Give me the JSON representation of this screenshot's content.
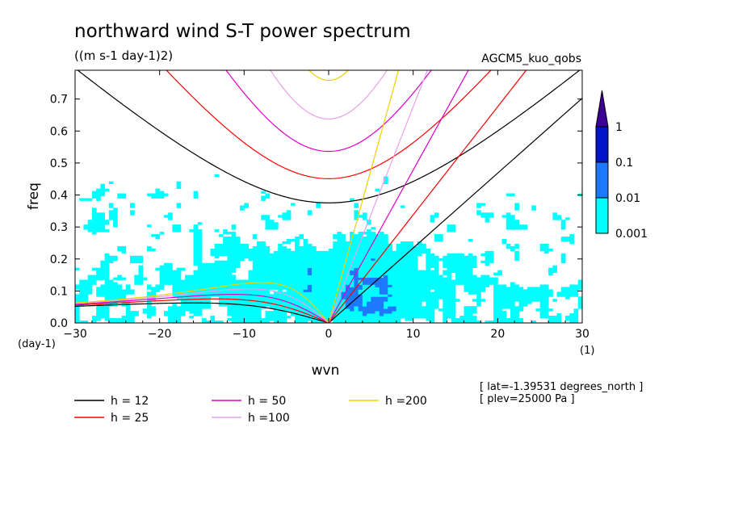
{
  "chart_data": {
    "type": "heatmap",
    "title": "northward wind S-T power spectrum",
    "subtitle": "((m s-1 day-1)2)",
    "model_label": "AGCM5_kuo_qobs",
    "xlabel": "wvn",
    "ylabel": "freq",
    "x_unit": "(1)",
    "y_unit": "(day-1)",
    "xlim": [
      -30,
      30
    ],
    "ylim": [
      0,
      0.79
    ],
    "x_ticks": [
      -30,
      -20,
      -10,
      0,
      10,
      20,
      30
    ],
    "x_tick_labels": [
      "-30",
      "-20",
      "-10",
      "0",
      "10",
      "20",
      "30"
    ],
    "y_ticks": [
      0.0,
      0.1,
      0.2,
      0.3,
      0.4,
      0.5,
      0.6,
      0.7
    ],
    "y_tick_labels": [
      "0.0",
      "0.1",
      "0.2",
      "0.3",
      "0.4",
      "0.5",
      "0.6",
      "0.7"
    ],
    "colorbar": {
      "scale": "log",
      "levels": [
        0.001,
        0.01,
        0.1,
        1
      ],
      "level_labels": [
        "0.001",
        "0.01",
        "0.1",
        "1"
      ],
      "colors": [
        "#00ffff",
        "#1e78ff",
        "#0014c8",
        "#3c0096"
      ]
    },
    "dispersion_curves": [
      {
        "label": "h = 12",
        "h": 12,
        "color": "#000000"
      },
      {
        "label": "h = 25",
        "h": 25,
        "color": "#ff0000"
      },
      {
        "label": "h = 50",
        "h": 50,
        "color": "#e000c8"
      },
      {
        "label": "h =100",
        "h": 100,
        "color": "#e8a0e8"
      },
      {
        "label": "h =200",
        "h": 200,
        "color": "#f0d000"
      }
    ],
    "annotations": [
      "[ lat=-1.39531 degrees_north ]",
      "[ plev=25000 Pa ]"
    ]
  }
}
